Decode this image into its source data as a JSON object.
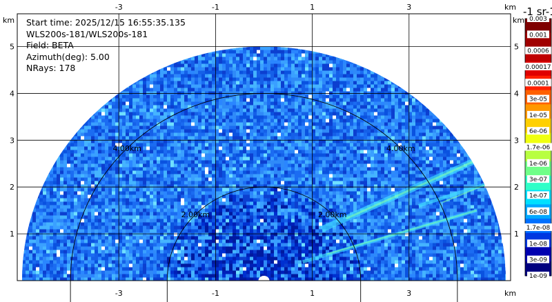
{
  "chart_data": {
    "type": "heatmap",
    "title_lines": [
      "Start time: 2025/12/15 16:55:35.135",
      "WLS200s-181/WLS200s-181",
      "Field: BETA",
      "Azimuth(deg): 5.00",
      "NRays: 178"
    ],
    "x_unit": "km",
    "y_unit": "km",
    "x_ticks": [
      "-3",
      "-1",
      "1",
      "3"
    ],
    "y_ticks": [
      "1",
      "2",
      "3",
      "4",
      "5"
    ],
    "xlim": [
      -5.1,
      5.1
    ],
    "ylim": [
      0,
      5.7
    ],
    "range_rings": [
      {
        "radius": 2,
        "label": "2.00km"
      },
      {
        "radius": 4,
        "label": "4.00km"
      }
    ],
    "sector_max_range_km": 5.0,
    "colorbar": {
      "unit_label": "-1 sr-1",
      "labels": [
        "0.003",
        "0.001",
        "0.0006",
        "0.00017",
        "0.0001",
        "3e-05",
        "1e-05",
        "6e-06",
        "1.7e-06",
        "1e-06",
        "3e-07",
        "1e-07",
        "6e-08",
        "1.7e-08",
        "1e-08",
        "3e-09",
        "1e-09"
      ],
      "colors": [
        "#7f0000",
        "#a00000",
        "#c00000",
        "#e00000",
        "#ff2000",
        "#ff6000",
        "#ff9800",
        "#ffd000",
        "#f0ff10",
        "#b8ff40",
        "#70ff88",
        "#30ffc8",
        "#00e0ff",
        "#00a8ff",
        "#0070ff",
        "#0038e0",
        "#0000b0",
        "#00007f"
      ]
    }
  }
}
